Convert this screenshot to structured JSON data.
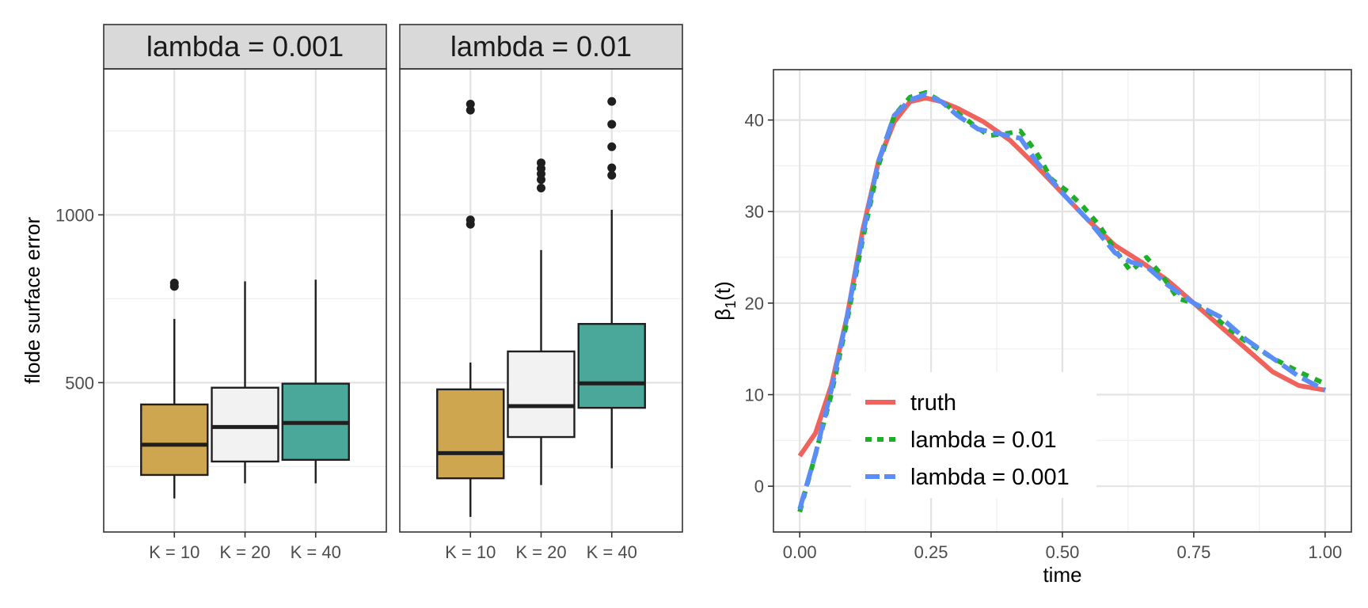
{
  "chart_data": [
    {
      "type": "boxplot",
      "facets": [
        "lambda = 0.001",
        "lambda = 0.01"
      ],
      "categories": [
        "K = 10",
        "K = 20",
        "K = 40"
      ],
      "ylabel": "flode surface error",
      "xlabel": "",
      "yticks": [
        500,
        1000
      ],
      "ylim": [
        55,
        1435
      ],
      "fill_colors": {
        "K = 10": "#CFA650",
        "K = 20": "#F2F2F2",
        "K = 40": "#4AA89B"
      },
      "boxes": [
        {
          "facet": "lambda = 0.001",
          "category": "K = 10",
          "whisker_low": 155,
          "q1": 225,
          "median": 315,
          "q3": 435,
          "whisker_high": 690,
          "outliers": [
            787,
            797
          ]
        },
        {
          "facet": "lambda = 0.001",
          "category": "K = 20",
          "whisker_low": 200,
          "q1": 265,
          "median": 368,
          "q3": 485,
          "whisker_high": 802,
          "outliers": []
        },
        {
          "facet": "lambda = 0.001",
          "category": "K = 40",
          "whisker_low": 200,
          "q1": 270,
          "median": 380,
          "q3": 497,
          "whisker_high": 807,
          "outliers": []
        },
        {
          "facet": "lambda = 0.01",
          "category": "K = 10",
          "whisker_low": 100,
          "q1": 215,
          "median": 290,
          "q3": 480,
          "whisker_high": 560,
          "outliers": [
            972,
            985,
            1312,
            1330
          ]
        },
        {
          "facet": "lambda = 0.01",
          "category": "K = 20",
          "whisker_low": 195,
          "q1": 338,
          "median": 430,
          "q3": 593,
          "whisker_high": 895,
          "outliers": [
            1080,
            1105,
            1122,
            1138,
            1155
          ]
        },
        {
          "facet": "lambda = 0.01",
          "category": "K = 40",
          "whisker_low": 245,
          "q1": 425,
          "median": 498,
          "q3": 675,
          "whisker_high": 1015,
          "outliers": [
            1118,
            1140,
            1203,
            1270,
            1338
          ]
        }
      ]
    },
    {
      "type": "line",
      "xlabel": "time",
      "ylabel_base": "β",
      "ylabel_sub": "1",
      "ylabel_suffix": "(t)",
      "xlim": [
        -0.05,
        1.05
      ],
      "ylim": [
        -5,
        45.5
      ],
      "xticks": [
        "0.00",
        "0.25",
        "0.50",
        "0.75",
        "1.00"
      ],
      "yticks": [
        "0",
        "10",
        "20",
        "30",
        "40"
      ],
      "legend_position": "bottom-left",
      "series": [
        {
          "name": "truth",
          "color": "#F0635C",
          "dash": "solid",
          "points": [
            [
              0.0,
              3.3
            ],
            [
              0.03,
              5.8
            ],
            [
              0.06,
              11
            ],
            [
              0.09,
              18.5
            ],
            [
              0.12,
              28
            ],
            [
              0.15,
              35.5
            ],
            [
              0.18,
              39.8
            ],
            [
              0.21,
              42
            ],
            [
              0.24,
              42.4
            ],
            [
              0.27,
              42
            ],
            [
              0.3,
              41.3
            ],
            [
              0.35,
              39.8
            ],
            [
              0.4,
              37.8
            ],
            [
              0.45,
              35
            ],
            [
              0.5,
              32
            ],
            [
              0.55,
              29
            ],
            [
              0.6,
              26.3
            ],
            [
              0.65,
              24.5
            ],
            [
              0.7,
              22.5
            ],
            [
              0.75,
              20
            ],
            [
              0.8,
              17.5
            ],
            [
              0.85,
              15
            ],
            [
              0.9,
              12.5
            ],
            [
              0.95,
              11
            ],
            [
              1.0,
              10.5
            ]
          ]
        },
        {
          "name": "lambda = 0.01",
          "color": "#1FAE28",
          "dash": "dotted",
          "points": [
            [
              0.0,
              -2.8
            ],
            [
              0.03,
              3.5
            ],
            [
              0.06,
              10
            ],
            [
              0.09,
              18
            ],
            [
              0.12,
              27
            ],
            [
              0.15,
              35
            ],
            [
              0.18,
              40.5
            ],
            [
              0.21,
              42.5
            ],
            [
              0.24,
              43
            ],
            [
              0.27,
              42
            ],
            [
              0.3,
              40.8
            ],
            [
              0.33,
              39.5
            ],
            [
              0.36,
              38.3
            ],
            [
              0.39,
              38.5
            ],
            [
              0.42,
              38.8
            ],
            [
              0.45,
              36.5
            ],
            [
              0.48,
              33.5
            ],
            [
              0.51,
              32.2
            ],
            [
              0.54,
              30.5
            ],
            [
              0.57,
              28.5
            ],
            [
              0.6,
              25.8
            ],
            [
              0.63,
              23.5
            ],
            [
              0.66,
              25
            ],
            [
              0.69,
              23
            ],
            [
              0.72,
              20.5
            ],
            [
              0.75,
              20
            ],
            [
              0.78,
              19
            ],
            [
              0.81,
              17.5
            ],
            [
              0.85,
              15.8
            ],
            [
              0.9,
              14
            ],
            [
              0.95,
              12.5
            ],
            [
              1.0,
              11.2
            ]
          ]
        },
        {
          "name": "lambda = 0.001",
          "color": "#5B8DF8",
          "dash": "dashed",
          "points": [
            [
              0.0,
              -2.5
            ],
            [
              0.03,
              3.5
            ],
            [
              0.06,
              10.5
            ],
            [
              0.09,
              18.5
            ],
            [
              0.12,
              27.5
            ],
            [
              0.15,
              35.5
            ],
            [
              0.18,
              40.5
            ],
            [
              0.21,
              42.2
            ],
            [
              0.24,
              42.8
            ],
            [
              0.27,
              42
            ],
            [
              0.3,
              40.5
            ],
            [
              0.34,
              39
            ],
            [
              0.38,
              38.5
            ],
            [
              0.42,
              38
            ],
            [
              0.45,
              35.5
            ],
            [
              0.5,
              32
            ],
            [
              0.55,
              29
            ],
            [
              0.6,
              25.5
            ],
            [
              0.63,
              24.5
            ],
            [
              0.66,
              24
            ],
            [
              0.7,
              22
            ],
            [
              0.75,
              20
            ],
            [
              0.8,
              18.5
            ],
            [
              0.85,
              16
            ],
            [
              0.9,
              14
            ],
            [
              0.95,
              12
            ],
            [
              1.0,
              10.5
            ]
          ]
        }
      ]
    }
  ]
}
